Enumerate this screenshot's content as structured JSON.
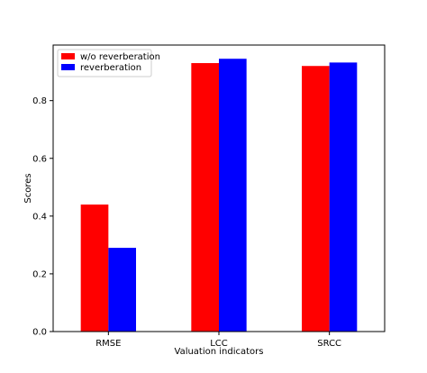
{
  "chart_data": {
    "type": "bar",
    "title": "",
    "xlabel": "Valuation indicators",
    "ylabel": "Scores",
    "categories": [
      "RMSE",
      "LCC",
      "SRCC"
    ],
    "series": [
      {
        "name": "w/o reverberation",
        "color": "#ff0000",
        "values": [
          0.44,
          0.93,
          0.92
        ]
      },
      {
        "name": "reverberation",
        "color": "#0000ff",
        "values": [
          0.29,
          0.945,
          0.932
        ]
      }
    ],
    "ylim": [
      0,
      0.9925
    ],
    "yticks": [
      0.0,
      0.2,
      0.4,
      0.6,
      0.8
    ],
    "ytick_labels": [
      "0.0",
      "0.2",
      "0.4",
      "0.6",
      "0.8"
    ],
    "grid": false,
    "legend": "top-left"
  }
}
